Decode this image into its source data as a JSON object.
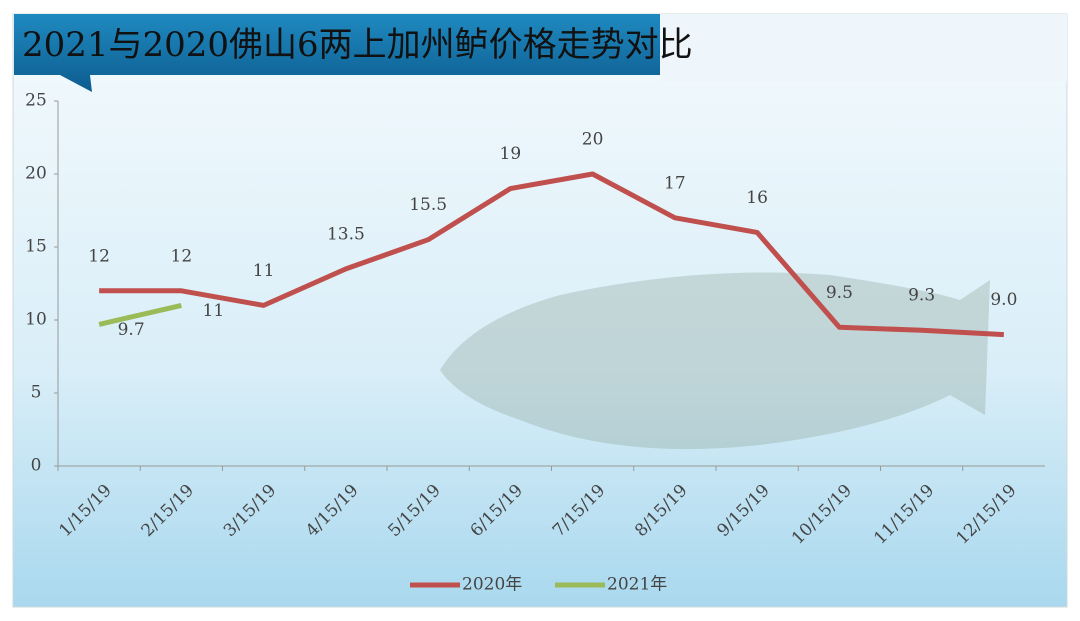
{
  "chart_data": {
    "type": "line",
    "title": "2021与2020佛山6两上加州鲈价格走势对比",
    "categories": [
      "1/15/19",
      "2/15/19",
      "3/15/19",
      "4/15/19",
      "5/15/19",
      "6/15/19",
      "7/15/19",
      "8/15/19",
      "9/15/19",
      "10/15/19",
      "11/15/19",
      "12/15/19"
    ],
    "series": [
      {
        "name": "2020年",
        "color": "#c0504d",
        "values": [
          12,
          12,
          11,
          13.5,
          15.5,
          19,
          20,
          17,
          16,
          9.5,
          9.3,
          9
        ],
        "value_labels": [
          "12",
          "12",
          "11",
          "13.5",
          "15.5",
          "19",
          "20",
          "17",
          "16",
          "9.5",
          "9.3",
          "9.0"
        ]
      },
      {
        "name": "2021年",
        "color": "#9bbb59",
        "values": [
          9.7,
          11,
          null,
          null,
          null,
          null,
          null,
          null,
          null,
          null,
          null,
          null
        ],
        "value_labels": [
          "9.7",
          "11",
          null,
          null,
          null,
          null,
          null,
          null,
          null,
          null,
          null,
          null
        ]
      }
    ],
    "ylim": [
      0,
      25
    ],
    "yticks": [
      0,
      5,
      10,
      15,
      20,
      25
    ],
    "legend": "bottom"
  }
}
